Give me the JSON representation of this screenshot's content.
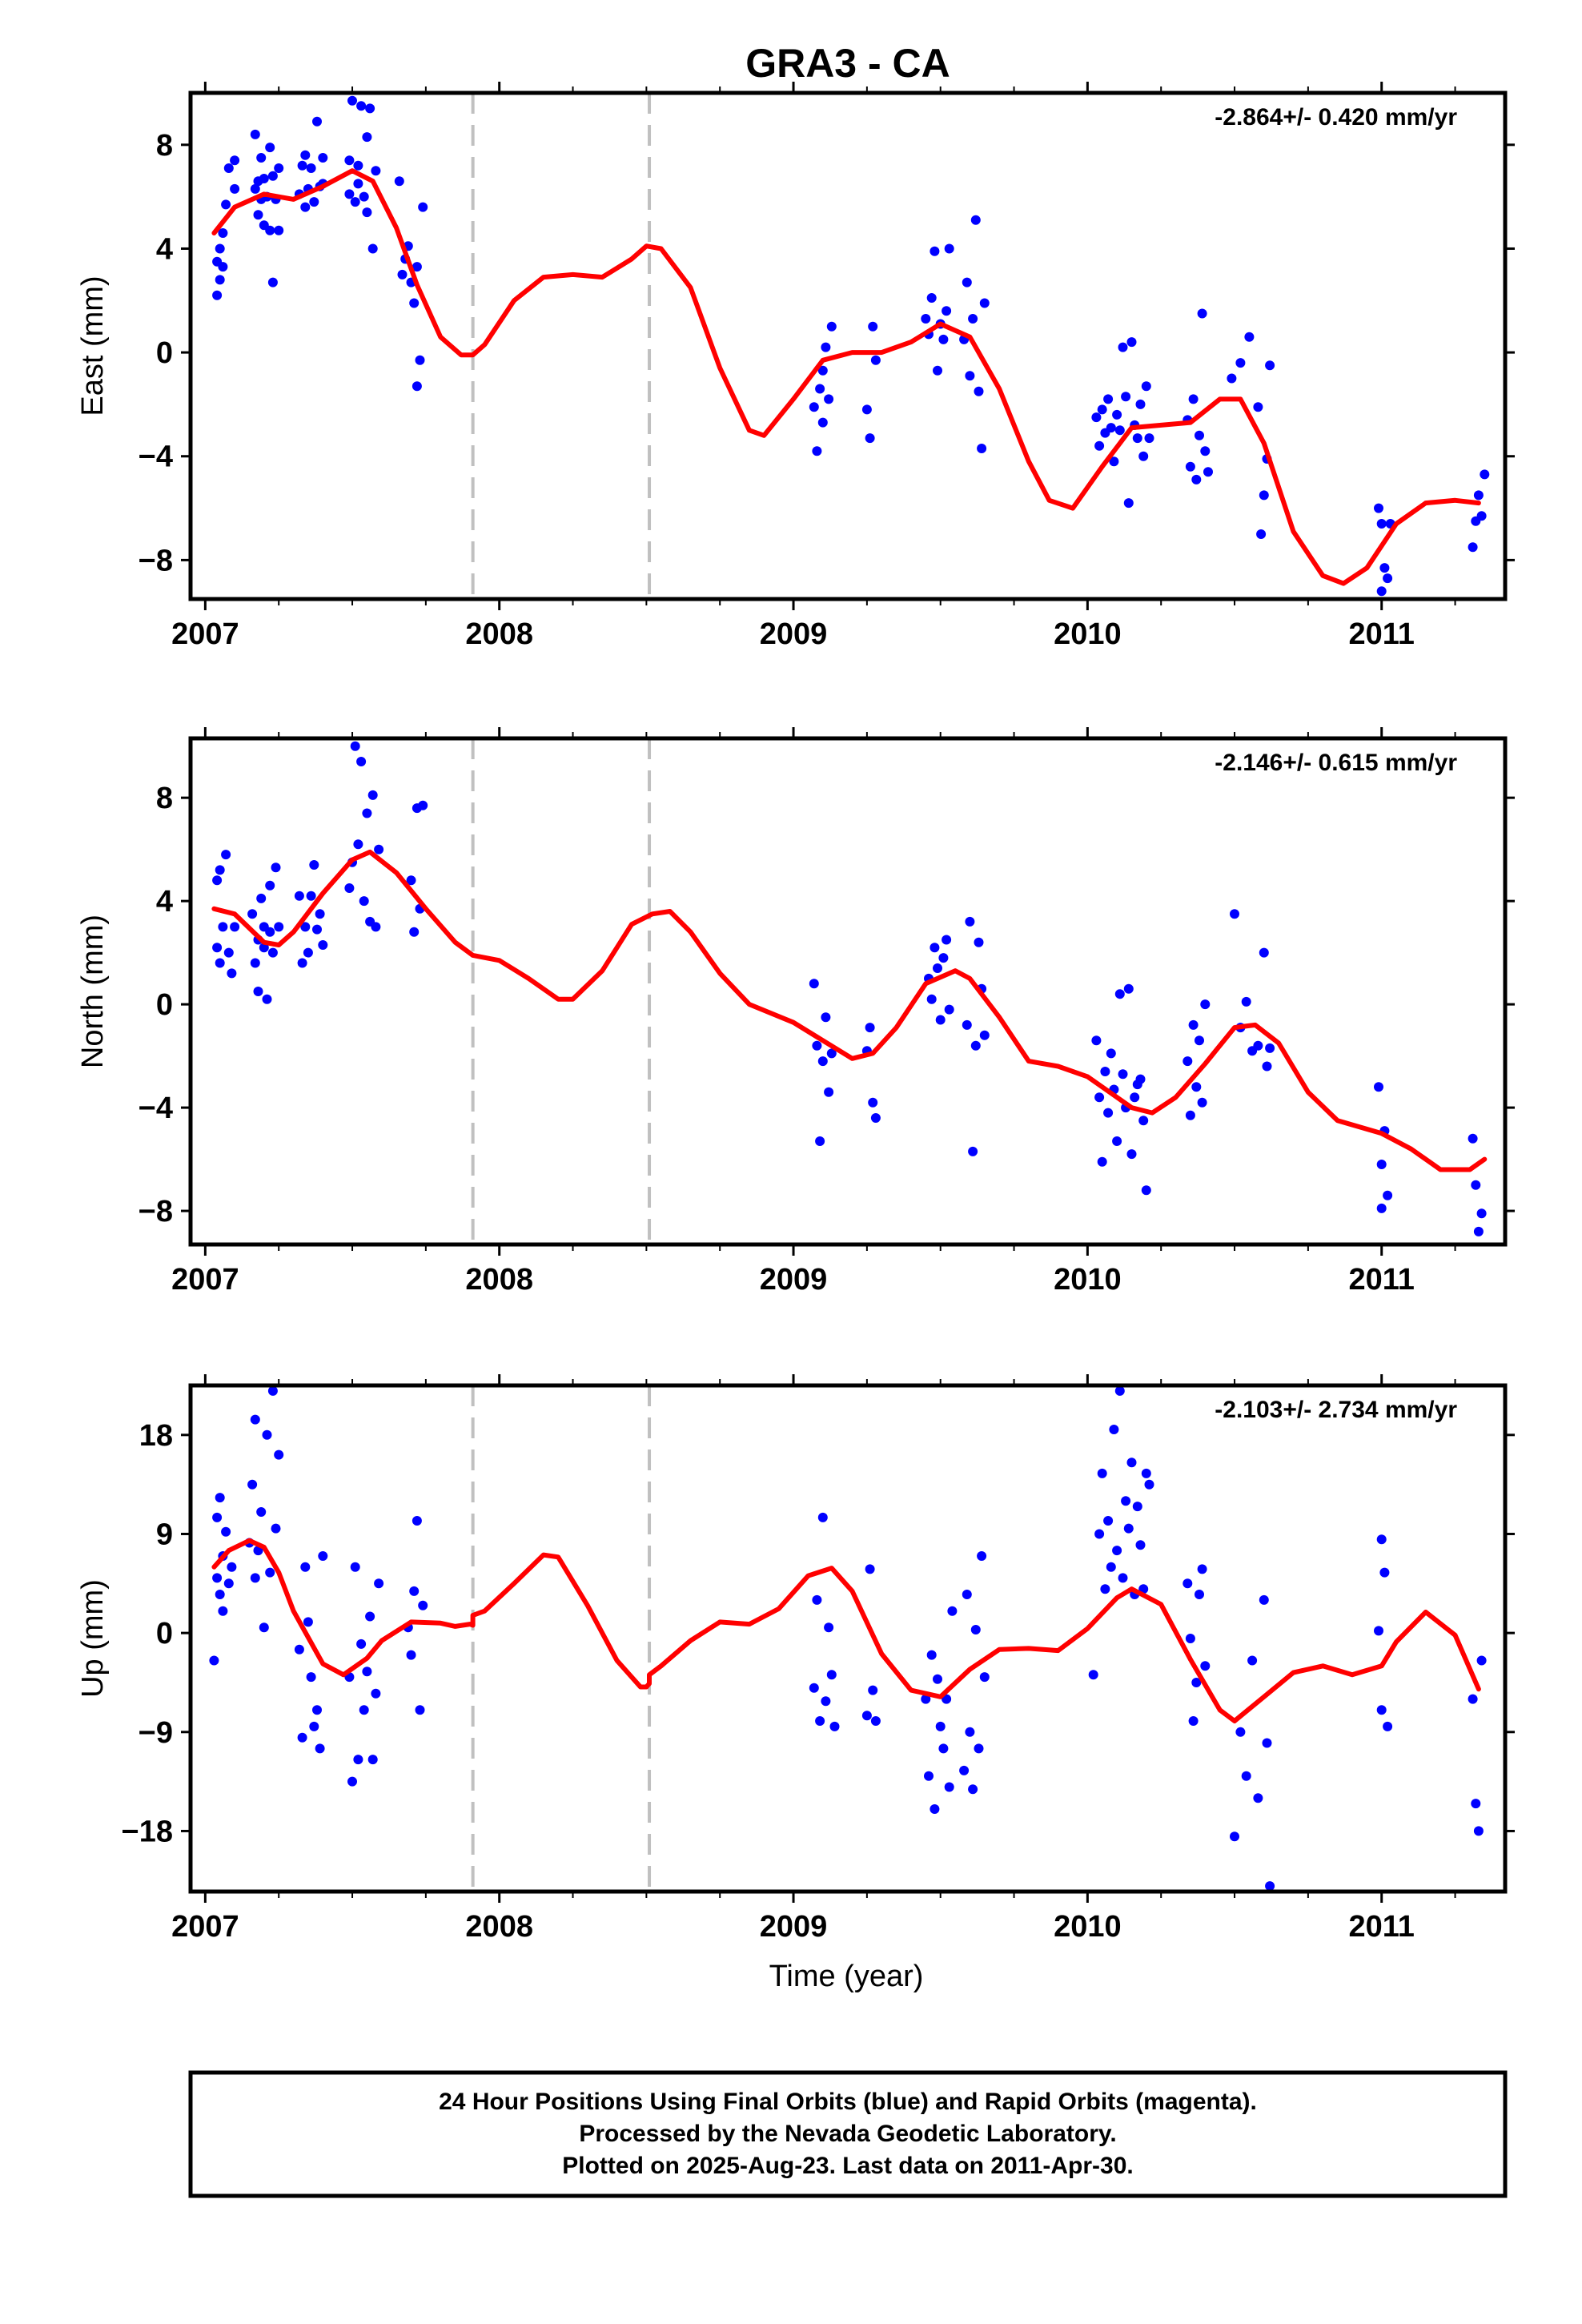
{
  "title": "GRA3 - CA",
  "x_axis_label": "Time (year)",
  "x_tick_labels": [
    "2007",
    "2008",
    "2009",
    "2010",
    "2011"
  ],
  "footer": {
    "line1": "24 Hour Positions Using Final Orbits (blue) and Rapid Orbits (magenta).",
    "line2": "Processed by the Nevada Geodetic Laboratory.",
    "line3": "Plotted on 2025-Aug-23. Last data on 2011-Apr-30."
  },
  "colors": {
    "points": "#0000ff",
    "model": "#ff0000",
    "steps": "#c0c0c0",
    "frame": "#000000"
  },
  "chart_data": [
    {
      "type": "scatter",
      "ylabel": "East (mm)",
      "rate_label": "-2.864+/- 0.420 mm/yr",
      "xlim": [
        2006.95,
        2011.42
      ],
      "ylim": [
        -9.5,
        10.0
      ],
      "yticks": [
        8,
        4,
        0,
        -4,
        -8
      ],
      "ytick_labels": [
        "8",
        "4",
        "0",
        "−4",
        "−8"
      ],
      "step_lines_x": [
        2007.91,
        2008.51
      ],
      "model_x": [
        2007.03,
        2007.1,
        2007.2,
        2007.3,
        2007.4,
        2007.5,
        2007.57,
        2007.65,
        2007.72,
        2007.8,
        2007.87,
        2007.91,
        2007.95,
        2008.05,
        2008.15,
        2008.25,
        2008.35,
        2008.45,
        2008.5,
        2008.55,
        2008.65,
        2008.75,
        2008.85,
        2008.9,
        2009.0,
        2009.1,
        2009.2,
        2009.3,
        2009.4,
        2009.5,
        2009.6,
        2009.7,
        2009.8,
        2009.87,
        2009.95,
        2010.05,
        2010.15,
        2010.25,
        2010.35,
        2010.45,
        2010.52,
        2010.6,
        2010.7,
        2010.8,
        2010.87,
        2010.95,
        2011.05,
        2011.15,
        2011.25,
        2011.33
      ],
      "model_y": [
        4.6,
        5.6,
        6.1,
        5.9,
        6.4,
        7.0,
        6.6,
        4.8,
        2.6,
        0.6,
        -0.1,
        -0.1,
        0.3,
        2.0,
        2.9,
        3.0,
        2.9,
        3.6,
        4.1,
        4.0,
        2.5,
        -0.6,
        -3.0,
        -3.2,
        -1.8,
        -0.3,
        0.0,
        0.0,
        0.4,
        1.1,
        0.6,
        -1.4,
        -4.2,
        -5.7,
        -6.0,
        -4.4,
        -2.9,
        -2.8,
        -2.7,
        -1.8,
        -1.8,
        -3.5,
        -6.9,
        -8.6,
        -8.9,
        -8.3,
        -6.6,
        -5.8,
        -5.7,
        -5.8
      ],
      "points_x": [
        2007.04,
        2007.04,
        2007.05,
        2007.05,
        2007.06,
        2007.06,
        2007.07,
        2007.08,
        2007.1,
        2007.1,
        2007.17,
        2007.17,
        2007.18,
        2007.18,
        2007.19,
        2007.19,
        2007.2,
        2007.2,
        2007.21,
        2007.22,
        2007.22,
        2007.23,
        2007.23,
        2007.24,
        2007.25,
        2007.25,
        2007.32,
        2007.33,
        2007.34,
        2007.34,
        2007.35,
        2007.36,
        2007.37,
        2007.38,
        2007.39,
        2007.4,
        2007.4,
        2007.49,
        2007.49,
        2007.5,
        2007.51,
        2007.52,
        2007.52,
        2007.53,
        2007.54,
        2007.55,
        2007.55,
        2007.56,
        2007.57,
        2007.58,
        2007.66,
        2007.67,
        2007.68,
        2007.69,
        2007.7,
        2007.71,
        2007.72,
        2007.72,
        2007.73,
        2007.74,
        2009.07,
        2009.08,
        2009.09,
        2009.1,
        2009.1,
        2009.11,
        2009.12,
        2009.13,
        2009.25,
        2009.26,
        2009.27,
        2009.28,
        2009.45,
        2009.46,
        2009.47,
        2009.48,
        2009.49,
        2009.5,
        2009.51,
        2009.52,
        2009.53,
        2009.58,
        2009.59,
        2009.6,
        2009.61,
        2009.62,
        2009.63,
        2009.64,
        2009.65,
        2010.03,
        2010.04,
        2010.05,
        2010.06,
        2010.07,
        2010.08,
        2010.09,
        2010.1,
        2010.11,
        2010.12,
        2010.13,
        2010.14,
        2010.15,
        2010.16,
        2010.17,
        2010.18,
        2010.19,
        2010.2,
        2010.21,
        2010.34,
        2010.35,
        2010.36,
        2010.37,
        2010.38,
        2010.39,
        2010.4,
        2010.41,
        2010.49,
        2010.52,
        2010.55,
        2010.58,
        2010.59,
        2010.6,
        2010.61,
        2010.62,
        2010.99,
        2011.0,
        2011.0,
        2011.01,
        2011.02,
        2011.03,
        2011.31,
        2011.32,
        2011.33,
        2011.34,
        2011.35
      ],
      "points_y": [
        3.5,
        2.2,
        4.0,
        2.8,
        4.6,
        3.3,
        5.7,
        7.1,
        6.3,
        7.4,
        6.3,
        8.4,
        5.3,
        6.6,
        5.9,
        7.5,
        4.9,
        6.7,
        6.0,
        7.9,
        4.7,
        6.8,
        2.7,
        5.9,
        7.1,
        4.7,
        6.1,
        7.2,
        5.6,
        7.6,
        6.3,
        7.1,
        5.8,
        8.9,
        6.4,
        7.5,
        6.5,
        7.4,
        6.1,
        9.7,
        5.8,
        7.2,
        6.5,
        9.5,
        6.0,
        8.3,
        5.4,
        9.4,
        4.0,
        7.0,
        6.6,
        3.0,
        3.6,
        4.1,
        2.7,
        1.9,
        3.3,
        -1.3,
        -0.3,
        5.6,
        -2.1,
        -3.8,
        -1.4,
        -0.7,
        -2.7,
        0.2,
        -1.8,
        1.0,
        -2.2,
        -3.3,
        1.0,
        -0.3,
        1.3,
        0.7,
        2.1,
        3.9,
        -0.7,
        1.1,
        0.5,
        1.6,
        4.0,
        0.5,
        2.7,
        -0.9,
        1.3,
        5.1,
        -1.5,
        -3.7,
        1.9,
        -2.5,
        -3.6,
        -2.2,
        -3.1,
        -1.8,
        -2.9,
        -4.2,
        -2.4,
        -3.0,
        0.2,
        -1.7,
        -5.8,
        0.4,
        -2.8,
        -3.3,
        -2.0,
        -4.0,
        -1.3,
        -3.3,
        -2.6,
        -4.4,
        -1.8,
        -4.9,
        -3.2,
        1.5,
        -3.8,
        -4.6,
        -1.0,
        -0.4,
        0.6,
        -2.1,
        -7.0,
        -5.5,
        -4.1,
        -0.5,
        -6.0,
        -9.2,
        -6.6,
        -8.3,
        -8.7,
        -6.6,
        -7.5,
        -6.5,
        -5.5,
        -6.3,
        -4.7
      ]
    },
    {
      "type": "scatter",
      "ylabel": "North (mm)",
      "rate_label": "-2.146+/- 0.615 mm/yr",
      "xlim": [
        2006.95,
        2011.42
      ],
      "ylim": [
        -9.3,
        10.3
      ],
      "yticks": [
        8,
        4,
        0,
        -4,
        -8
      ],
      "ytick_labels": [
        "8",
        "4",
        "0",
        "−4",
        "−8"
      ],
      "step_lines_x": [
        2007.91,
        2008.51
      ],
      "model_x": [
        2007.03,
        2007.1,
        2007.2,
        2007.25,
        2007.3,
        2007.4,
        2007.5,
        2007.56,
        2007.65,
        2007.75,
        2007.85,
        2007.91,
        2008.0,
        2008.1,
        2008.2,
        2008.25,
        2008.35,
        2008.45,
        2008.52,
        2008.58,
        2008.65,
        2008.75,
        2008.85,
        2009.0,
        2009.1,
        2009.2,
        2009.27,
        2009.35,
        2009.45,
        2009.55,
        2009.6,
        2009.7,
        2009.8,
        2009.9,
        2010.0,
        2010.1,
        2010.15,
        2010.22,
        2010.3,
        2010.4,
        2010.5,
        2010.57,
        2010.65,
        2010.75,
        2010.85,
        2011.0,
        2011.1,
        2011.2,
        2011.3,
        2011.35
      ],
      "model_y": [
        3.7,
        3.5,
        2.4,
        2.3,
        2.8,
        4.3,
        5.6,
        5.9,
        5.1,
        3.7,
        2.4,
        1.9,
        1.7,
        1.0,
        0.2,
        0.2,
        1.3,
        3.1,
        3.5,
        3.6,
        2.8,
        1.2,
        0.0,
        -0.7,
        -1.4,
        -2.1,
        -1.9,
        -0.9,
        0.8,
        1.3,
        1.0,
        -0.5,
        -2.2,
        -2.4,
        -2.8,
        -3.6,
        -4.0,
        -4.2,
        -3.6,
        -2.3,
        -0.9,
        -0.8,
        -1.5,
        -3.4,
        -4.5,
        -5.0,
        -5.6,
        -6.4,
        -6.4,
        -6.0
      ],
      "points_x": [
        2007.04,
        2007.04,
        2007.05,
        2007.05,
        2007.06,
        2007.07,
        2007.08,
        2007.09,
        2007.1,
        2007.16,
        2007.17,
        2007.18,
        2007.18,
        2007.19,
        2007.2,
        2007.2,
        2007.21,
        2007.22,
        2007.22,
        2007.23,
        2007.24,
        2007.25,
        2007.32,
        2007.33,
        2007.34,
        2007.35,
        2007.36,
        2007.37,
        2007.38,
        2007.39,
        2007.4,
        2007.49,
        2007.5,
        2007.51,
        2007.52,
        2007.53,
        2007.54,
        2007.55,
        2007.56,
        2007.57,
        2007.58,
        2007.59,
        2007.7,
        2007.71,
        2007.72,
        2007.73,
        2007.74,
        2009.07,
        2009.08,
        2009.09,
        2009.1,
        2009.11,
        2009.12,
        2009.13,
        2009.25,
        2009.26,
        2009.27,
        2009.28,
        2009.46,
        2009.47,
        2009.48,
        2009.49,
        2009.5,
        2009.51,
        2009.52,
        2009.53,
        2009.59,
        2009.6,
        2009.61,
        2009.62,
        2009.63,
        2009.64,
        2009.65,
        2010.03,
        2010.04,
        2010.05,
        2010.06,
        2010.07,
        2010.08,
        2010.09,
        2010.1,
        2010.11,
        2010.12,
        2010.13,
        2010.14,
        2010.15,
        2010.16,
        2010.17,
        2010.18,
        2010.19,
        2010.2,
        2010.34,
        2010.35,
        2010.36,
        2010.37,
        2010.38,
        2010.39,
        2010.4,
        2010.5,
        2010.52,
        2010.54,
        2010.56,
        2010.58,
        2010.6,
        2010.61,
        2010.62,
        2010.99,
        2011.0,
        2011.0,
        2011.01,
        2011.02,
        2011.31,
        2011.32,
        2011.33,
        2011.34
      ],
      "points_y": [
        2.2,
        4.8,
        1.6,
        5.2,
        3.0,
        5.8,
        2.0,
        1.2,
        3.0,
        3.5,
        1.6,
        2.5,
        0.5,
        4.1,
        2.2,
        3.0,
        0.2,
        2.8,
        4.6,
        2.0,
        5.3,
        3.0,
        4.2,
        1.6,
        3.0,
        2.0,
        4.2,
        5.4,
        2.9,
        3.5,
        2.3,
        4.5,
        5.5,
        10.0,
        6.2,
        9.4,
        4.0,
        7.4,
        3.2,
        8.1,
        3.0,
        6.0,
        4.8,
        2.8,
        7.6,
        3.7,
        7.7,
        0.8,
        -1.6,
        -5.3,
        -2.2,
        -0.5,
        -3.4,
        -1.9,
        -1.8,
        -0.9,
        -3.8,
        -4.4,
        1.0,
        0.2,
        2.2,
        1.4,
        -0.6,
        1.8,
        2.5,
        -0.2,
        -0.8,
        3.2,
        -5.7,
        -1.6,
        2.4,
        0.6,
        -1.2,
        -1.4,
        -3.6,
        -6.1,
        -2.6,
        -4.2,
        -1.9,
        -3.3,
        -5.3,
        0.4,
        -2.7,
        -4.0,
        0.6,
        -5.8,
        -3.6,
        -3.1,
        -2.9,
        -4.5,
        -7.2,
        -2.2,
        -4.3,
        -0.8,
        -3.2,
        -1.4,
        -3.8,
        0.0,
        3.5,
        -0.9,
        0.1,
        -1.8,
        -1.6,
        2.0,
        -2.4,
        -1.7,
        -3.2,
        -6.2,
        -7.9,
        -4.9,
        -7.4,
        -5.2,
        -7.0,
        -8.8,
        -8.1
      ]
    },
    {
      "type": "scatter",
      "ylabel": "Up (mm)",
      "rate_label": "-2.103+/- 2.734 mm/yr",
      "xlim": [
        2006.95,
        2011.42
      ],
      "ylim": [
        -23.5,
        22.5
      ],
      "yticks": [
        18,
        9,
        0,
        -9,
        -18
      ],
      "ytick_labels": [
        "18",
        "9",
        "0",
        "−9",
        "−18"
      ],
      "step_lines_x": [
        2007.91,
        2008.51
      ],
      "model_x": [
        2007.03,
        2007.08,
        2007.15,
        2007.2,
        2007.25,
        2007.3,
        2007.4,
        2007.47,
        2007.55,
        2007.6,
        2007.7,
        2007.8,
        2007.85,
        2007.9,
        2007.91,
        2007.91,
        2007.95,
        2008.05,
        2008.15,
        2008.2,
        2008.3,
        2008.4,
        2008.48,
        2008.5,
        2008.51,
        2008.51,
        2008.55,
        2008.65,
        2008.75,
        2008.85,
        2008.95,
        2009.05,
        2009.13,
        2009.2,
        2009.3,
        2009.4,
        2009.5,
        2009.6,
        2009.7,
        2009.8,
        2009.9,
        2010.0,
        2010.1,
        2010.15,
        2010.25,
        2010.35,
        2010.45,
        2010.5,
        2010.6,
        2010.7,
        2010.8,
        2010.9,
        2011.0,
        2011.05,
        2011.15,
        2011.25,
        2011.33
      ],
      "model_y": [
        6.0,
        7.5,
        8.4,
        7.8,
        5.5,
        2.0,
        -2.8,
        -3.8,
        -2.3,
        -0.7,
        1.0,
        0.9,
        0.6,
        0.8,
        0.7,
        1.6,
        2.0,
        4.5,
        7.1,
        6.9,
        2.5,
        -2.5,
        -4.9,
        -4.9,
        -4.6,
        -3.8,
        -3.0,
        -0.7,
        1.0,
        0.8,
        2.2,
        5.2,
        5.9,
        3.8,
        -1.9,
        -5.2,
        -5.8,
        -3.3,
        -1.5,
        -1.4,
        -1.6,
        0.4,
        3.2,
        4.0,
        2.6,
        -2.4,
        -7.0,
        -8.0,
        -5.8,
        -3.6,
        -3.0,
        -3.8,
        -3.0,
        -0.8,
        1.9,
        -0.2,
        -5.1
      ],
      "points_x": [
        2007.03,
        2007.04,
        2007.04,
        2007.05,
        2007.05,
        2007.06,
        2007.06,
        2007.07,
        2007.08,
        2007.09,
        2007.15,
        2007.16,
        2007.17,
        2007.17,
        2007.18,
        2007.19,
        2007.2,
        2007.21,
        2007.22,
        2007.23,
        2007.24,
        2007.25,
        2007.32,
        2007.33,
        2007.34,
        2007.35,
        2007.36,
        2007.37,
        2007.38,
        2007.39,
        2007.4,
        2007.49,
        2007.5,
        2007.51,
        2007.52,
        2007.53,
        2007.54,
        2007.55,
        2007.56,
        2007.57,
        2007.58,
        2007.59,
        2007.69,
        2007.7,
        2007.71,
        2007.72,
        2007.73,
        2007.74,
        2009.07,
        2009.08,
        2009.09,
        2009.1,
        2009.11,
        2009.12,
        2009.13,
        2009.14,
        2009.25,
        2009.26,
        2009.27,
        2009.28,
        2009.45,
        2009.46,
        2009.47,
        2009.48,
        2009.49,
        2009.5,
        2009.51,
        2009.52,
        2009.53,
        2009.54,
        2009.58,
        2009.59,
        2009.6,
        2009.61,
        2009.62,
        2009.63,
        2009.64,
        2009.65,
        2010.02,
        2010.04,
        2010.05,
        2010.06,
        2010.07,
        2010.08,
        2010.09,
        2010.1,
        2010.11,
        2010.12,
        2010.13,
        2010.14,
        2010.15,
        2010.16,
        2010.17,
        2010.18,
        2010.19,
        2010.2,
        2010.21,
        2010.34,
        2010.35,
        2010.36,
        2010.37,
        2010.38,
        2010.39,
        2010.4,
        2010.5,
        2010.52,
        2010.54,
        2010.56,
        2010.58,
        2010.6,
        2010.61,
        2010.62,
        2010.99,
        2011.0,
        2011.0,
        2011.01,
        2011.02,
        2011.31,
        2011.32,
        2011.33,
        2011.34
      ],
      "points_y": [
        -2.5,
        5.0,
        10.5,
        3.5,
        12.3,
        7.0,
        2.0,
        9.2,
        4.5,
        6.0,
        8.2,
        13.5,
        5.0,
        19.4,
        7.5,
        11.0,
        0.5,
        18.0,
        5.5,
        22.0,
        9.5,
        16.2,
        -1.5,
        -9.5,
        6.0,
        1.0,
        -4.0,
        -8.5,
        -7.0,
        -10.5,
        7.0,
        -4.0,
        -13.5,
        6.0,
        -11.5,
        -1.0,
        -7.0,
        -3.5,
        1.5,
        -11.5,
        -5.5,
        4.5,
        0.5,
        -2.0,
        3.8,
        10.2,
        -7.0,
        2.5,
        -5.0,
        3.0,
        -8.0,
        10.5,
        -6.2,
        0.5,
        -3.8,
        -8.5,
        -7.5,
        5.8,
        -5.2,
        -8.0,
        -6.0,
        -13.0,
        -2.0,
        -16.0,
        -4.2,
        -8.5,
        -10.5,
        -6.0,
        -14.0,
        2.0,
        -12.5,
        3.5,
        -9.0,
        -14.2,
        0.3,
        -10.5,
        7.0,
        -4.0,
        -3.8,
        9.0,
        14.5,
        4.0,
        10.2,
        6.0,
        18.5,
        7.5,
        22.0,
        5.0,
        12.0,
        9.5,
        15.5,
        3.5,
        11.5,
        8.0,
        4.0,
        14.5,
        13.5,
        4.5,
        -0.5,
        -8.0,
        -4.5,
        3.5,
        5.8,
        -3.0,
        -18.5,
        -9.0,
        -13.0,
        -2.5,
        -15.0,
        3.0,
        -10.0,
        -23.0,
        0.2,
        -7.0,
        8.5,
        5.5,
        -8.5,
        -6.0,
        -15.5,
        -18.0,
        -2.5
      ]
    }
  ]
}
